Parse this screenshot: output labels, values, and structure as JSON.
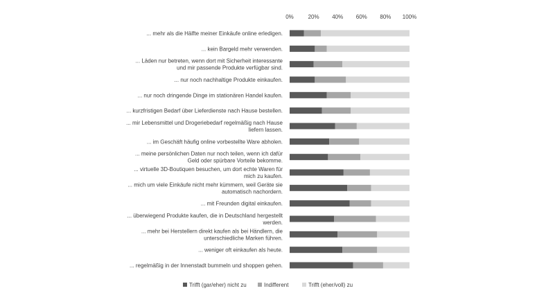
{
  "chart_data": {
    "type": "bar",
    "orientation": "horizontal",
    "stacked": true,
    "xlim": [
      0,
      100
    ],
    "x_ticks": [
      "0%",
      "20%",
      "40%",
      "60%",
      "80%",
      "100%"
    ],
    "legend_position": "bottom",
    "grid": false,
    "categories": [
      [
        "... mehr als die Hälfte meiner Einkäufe online erledigen."
      ],
      [
        "... kein Bargeld mehr verwenden."
      ],
      [
        "... Läden nur betreten, wenn dort mit Sicherheit interessante",
        "und mir passende Produkte verfügbar sind."
      ],
      [
        "... nur noch nachhaltige Produkte einkaufen."
      ],
      [
        "... nur noch dringende Dinge im stationären Handel kaufen."
      ],
      [
        "... kurzfristigen Bedarf über Lieferdienste nach Hause bestellen."
      ],
      [
        "... mir Lebensmittel und Drogeriebedarf regelmäßig nach Hause",
        "liefern lassen."
      ],
      [
        "... im Geschäft häufig online vorbestellte Ware abholen."
      ],
      [
        "... meine persönlichen Daten nur noch teilen, wenn ich dafür",
        "Geld oder spürbare Vorteile bekomme."
      ],
      [
        "... virtuelle 3D-Boutiquen besuchen, um dort echte Waren für",
        "mich zu kaufen."
      ],
      [
        "... mich um viele Einkäufe nicht mehr kümmern, weil Geräte sie",
        "automatisch nachordern."
      ],
      [
        "... mit Freunden digital einkaufen."
      ],
      [
        "... überwiegend Produkte kaufen, die in Deutschland hergestellt",
        "werden."
      ],
      [
        "... mehr bei Herstellern direkt kaufen als bei Händlern, die",
        "unterschiedliche Marken führen."
      ],
      [
        "... weniger oft einkaufen als heute."
      ],
      [
        "... regelmäßig in der Innenstadt bummeln und shoppen gehen."
      ]
    ],
    "series": [
      {
        "name": "Trifft (gar/eher) nicht zu",
        "color": "#595959",
        "values": [
          12,
          21,
          20,
          21,
          31,
          27,
          38,
          33,
          32,
          45,
          48,
          50,
          37,
          40,
          44,
          53
        ]
      },
      {
        "name": "Indifferent",
        "color": "#a6a6a6",
        "values": [
          14,
          10,
          24,
          26,
          20,
          24,
          18,
          25,
          27,
          22,
          20,
          18,
          35,
          33,
          29,
          25
        ]
      },
      {
        "name": "Trifft (eher/voll) zu",
        "color": "#d9d9d9",
        "values": [
          74,
          69,
          56,
          53,
          49,
          49,
          44,
          42,
          41,
          33,
          32,
          32,
          28,
          27,
          27,
          22
        ]
      }
    ]
  }
}
